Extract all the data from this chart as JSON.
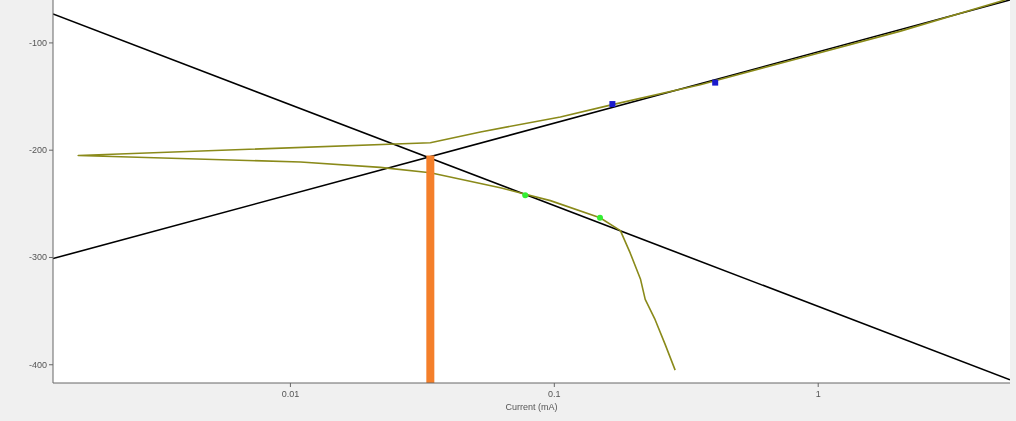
{
  "chart_data": {
    "type": "line",
    "xlabel": "Current (mA)",
    "log": "x",
    "xlim": [
      0.00126,
      5.33
    ],
    "ylim": [
      -417,
      -60
    ],
    "xticks": [
      {
        "value": 0.01,
        "label": "0.01"
      },
      {
        "value": 0.1,
        "label": "0.1"
      },
      {
        "value": 1,
        "label": "1"
      }
    ],
    "yticks": [
      -100,
      -200,
      -300,
      -400
    ],
    "grid": false,
    "marker": "none",
    "line_style": "solid",
    "series": [
      {
        "color": "#000000",
        "x": [
          0.00126,
          5.33
        ],
        "values": [
          -73,
          -414
        ]
      },
      {
        "color": "#000000",
        "x": [
          0.00126,
          5.33
        ],
        "values": [
          -301,
          -60
        ]
      },
      {
        "color": "#8a8a1a",
        "x": [
          0.287,
          0.263,
          0.241,
          0.221,
          0.212,
          0.194,
          0.178,
          0.149,
          0.0966,
          0.0624,
          0.0339,
          0.0219,
          0.01092,
          0.00157,
          0.0339,
          0.0525,
          0.1054,
          0.163,
          0.357,
          0.855,
          2.05,
          5.1
        ],
        "values": [
          -405,
          -381,
          -358,
          -339,
          -320,
          -296,
          -275,
          -263,
          -247,
          -235,
          -221,
          -216,
          -211,
          -205,
          -193,
          -183,
          -169,
          -158,
          -139,
          -114,
          -89,
          -60
        ]
      },
      {
        "type": "scatter",
        "color": "#1a1acc",
        "marker": "square",
        "x": [
          0.166,
          0.407
        ],
        "values": [
          -157,
          -137
        ]
      },
      {
        "type": "scatter",
        "color": "#33ee33",
        "marker": "circle",
        "x": [
          0.0776,
          0.149
        ],
        "values": [
          -242,
          -263
        ]
      },
      {
        "color": "#f47f2a",
        "x": [
          0.0339,
          0.0339
        ],
        "values": [
          -205,
          -417
        ]
      }
    ]
  }
}
